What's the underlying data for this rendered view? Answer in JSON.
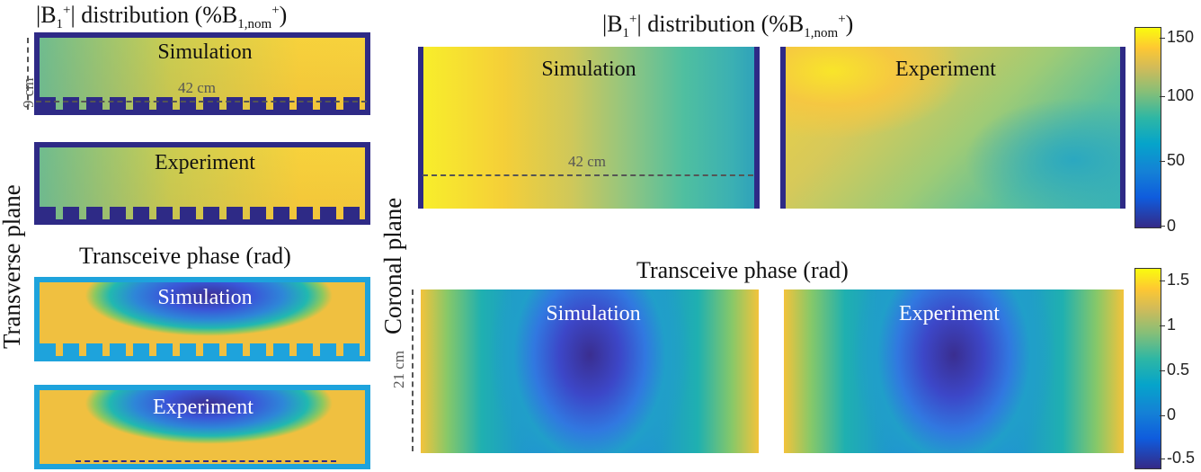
{
  "transverse": {
    "b1_title": {
      "pre": "|B",
      "sub1": "1",
      "sup1": "+",
      "mid": "| distribution (%B",
      "sub2": "1,nom",
      "sup2": "+",
      "post": ")"
    },
    "phase_title": "Transceive  phase (rad)",
    "plane_label": "Transverse plane",
    "b1_sim_label": "Simulation",
    "b1_exp_label": "Experiment",
    "ph_sim_label": "Simulation",
    "ph_exp_label": "Experiment",
    "height_dim": "9 cm",
    "width_dim": "42 cm"
  },
  "coronal": {
    "b1_title": {
      "pre": "|B",
      "sub1": "1",
      "sup1": "+",
      "mid": "| distribution (%B",
      "sub2": "1,nom",
      "sup2": "+",
      "post": ")"
    },
    "phase_title": "Transceive  phase (rad)",
    "plane_label": "Coronal plane",
    "b1_sim_label": "Simulation",
    "b1_exp_label": "Experiment",
    "ph_sim_label": "Simulation",
    "ph_exp_label": "Experiment",
    "width_dim": "42 cm",
    "height_dim": "21 cm"
  },
  "colorbars": {
    "b1_ticks": [
      "150",
      "100",
      "50",
      "0"
    ],
    "phase_ticks": [
      "1.5",
      "1",
      "0.5",
      "0",
      "-0.5"
    ]
  },
  "colors": {
    "frame_navy": "#2e2a86",
    "frame_cyan": "#1ea3dc",
    "colormap": "parula"
  }
}
